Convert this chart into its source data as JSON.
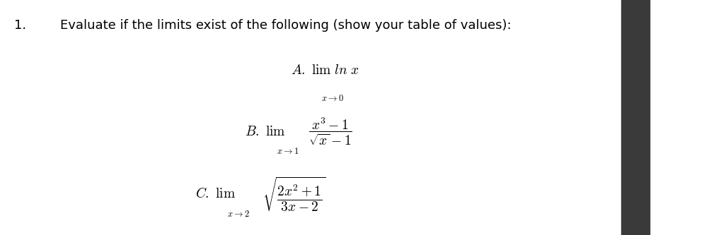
{
  "background_color": "#ffffff",
  "fig_width": 10.03,
  "fig_height": 3.33,
  "dpi": 100,
  "number_text": "1.",
  "main_instruction": "Evaluate if the limits exist of the following (show your table of values):",
  "dark_bar_color": "#3a3a3a",
  "text_color": "#000000",
  "font_size_instruction": 13,
  "font_size_math": 14,
  "font_size_number": 13
}
